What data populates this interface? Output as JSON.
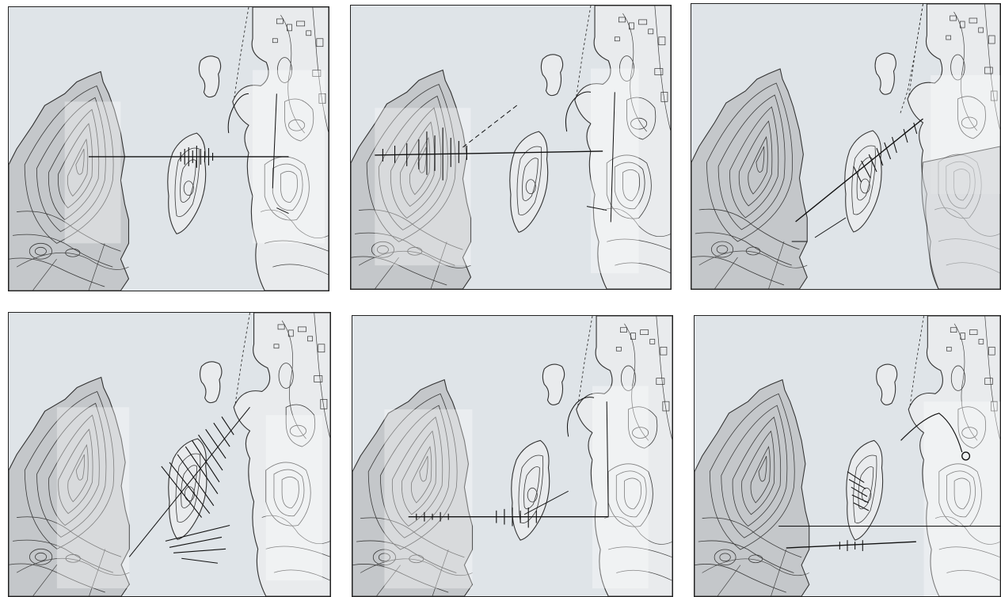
{
  "figure": {
    "panel_count": 6,
    "colors": {
      "water": "#dfe4e8",
      "land_dark": "#c4c7ca",
      "land_light": "#e9ebed",
      "ink": "#111111"
    }
  }
}
